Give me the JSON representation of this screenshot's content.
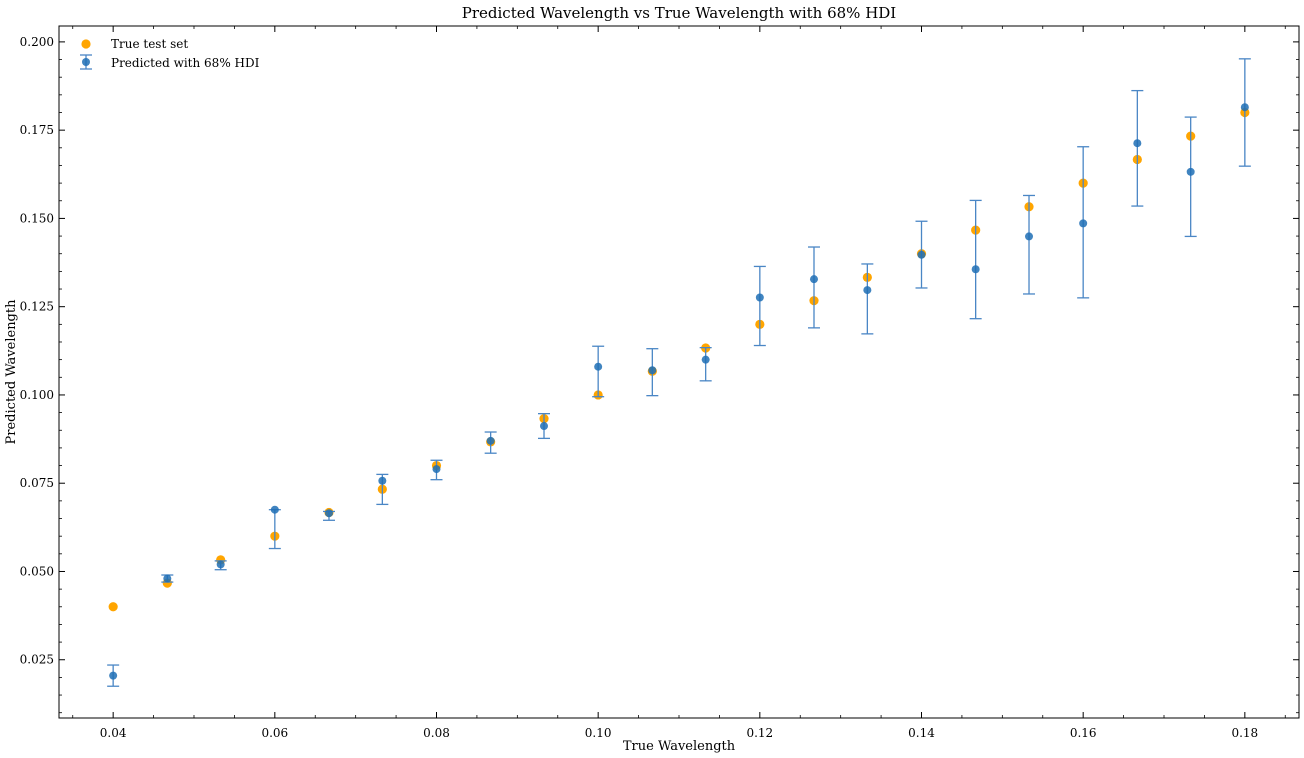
{
  "chart_data": {
    "type": "scatter",
    "title": "Predicted Wavelength vs True Wavelength with 68% HDI",
    "xlabel": "True Wavelength",
    "ylabel": "Predicted Wavelength",
    "xlim": [
      0.0333,
      0.1867
    ],
    "ylim": [
      0.0085,
      0.2045
    ],
    "xticks": [
      "0.04",
      "0.06",
      "0.08",
      "0.10",
      "0.12",
      "0.14",
      "0.16",
      "0.18"
    ],
    "yticks": [
      "0.025",
      "0.050",
      "0.075",
      "0.100",
      "0.125",
      "0.150",
      "0.175",
      "0.200"
    ],
    "grid": false,
    "legend_position": "top-left",
    "x": [
      0.04,
      0.0467,
      0.0533,
      0.06,
      0.0667,
      0.0733,
      0.08,
      0.0867,
      0.0933,
      0.1,
      0.1067,
      0.1133,
      0.12,
      0.1267,
      0.1333,
      0.14,
      0.1467,
      0.1533,
      0.16,
      0.1667,
      0.1733,
      0.18
    ],
    "series": [
      {
        "name": "True test set",
        "kind": "scatter",
        "color": "#ffa500",
        "values": [
          0.04,
          0.0467,
          0.0533,
          0.06,
          0.0667,
          0.0733,
          0.08,
          0.0867,
          0.0933,
          0.1,
          0.1067,
          0.1133,
          0.12,
          0.1267,
          0.1333,
          0.14,
          0.1467,
          0.1533,
          0.16,
          0.1667,
          0.1733,
          0.18
        ]
      },
      {
        "name": "Predicted with 68% HDI",
        "kind": "errorbar",
        "color": "#1f6fb5",
        "values": [
          0.0205,
          0.048,
          0.052,
          0.0675,
          0.0665,
          0.0757,
          0.079,
          0.087,
          0.0912,
          0.108,
          0.107,
          0.11,
          0.1276,
          0.1328,
          0.1297,
          0.1397,
          0.1356,
          0.1449,
          0.1486,
          0.1713,
          0.1632,
          0.1815
        ],
        "lower": [
          0.0175,
          0.047,
          0.0505,
          0.0565,
          0.0645,
          0.069,
          0.076,
          0.0835,
          0.0877,
          0.0995,
          0.0998,
          0.104,
          0.114,
          0.119,
          0.1173,
          0.1303,
          0.1216,
          0.1286,
          0.1275,
          0.1535,
          0.1449,
          0.1648
        ],
        "upper": [
          0.0235,
          0.049,
          0.053,
          0.0675,
          0.067,
          0.0775,
          0.0815,
          0.0895,
          0.0947,
          0.1138,
          0.1131,
          0.1134,
          0.1364,
          0.1419,
          0.1371,
          0.1492,
          0.1551,
          0.1565,
          0.1703,
          0.1862,
          0.1787,
          0.1952
        ]
      }
    ]
  }
}
